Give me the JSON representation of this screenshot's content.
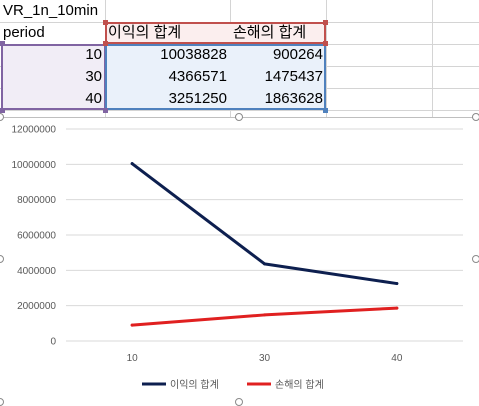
{
  "sheet": {
    "title_cell": "VR_1n_10min",
    "row_label_header": "period",
    "column_headers": [
      "이익의 합계",
      "손해의 합계"
    ],
    "rows": [
      {
        "period": "10",
        "profit": "10038828",
        "loss": "900264"
      },
      {
        "period": "30",
        "profit": "4366571",
        "loss": "1475437"
      },
      {
        "period": "40",
        "profit": "3251250",
        "loss": "1863628"
      }
    ]
  },
  "colors": {
    "profit_series": "#0d1f4f",
    "loss_series": "#e02020",
    "header_range": "#c0504d",
    "label_range": "#8064a2",
    "data_range": "#4f81bd"
  },
  "chart_data": {
    "type": "line",
    "categories": [
      "10",
      "30",
      "40"
    ],
    "series": [
      {
        "name": "이익의 합계",
        "values": [
          10038828,
          4366571,
          3251250
        ]
      },
      {
        "name": "손해의 합계",
        "values": [
          900264,
          1475437,
          1863628
        ]
      }
    ],
    "y_ticks": [
      "0",
      "2000000",
      "4000000",
      "6000000",
      "8000000",
      "10000000",
      "12000000"
    ],
    "ylim": [
      0,
      12000000
    ],
    "grid": true,
    "legend_position": "bottom"
  }
}
